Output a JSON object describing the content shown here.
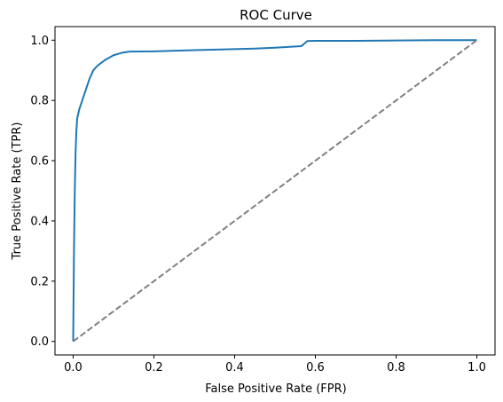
{
  "chart_data": {
    "type": "line",
    "title": "ROC Curve",
    "xlabel": "False Positive Rate (FPR)",
    "ylabel": "True Positive Rate (TPR)",
    "xlim": [
      -0.045,
      1.045
    ],
    "ylim": [
      -0.045,
      1.045
    ],
    "xticks": [
      0.0,
      0.2,
      0.4,
      0.6,
      0.8,
      1.0
    ],
    "yticks": [
      0.0,
      0.2,
      0.4,
      0.6,
      0.8,
      1.0
    ],
    "xtick_labels": [
      "0.0",
      "0.2",
      "0.4",
      "0.6",
      "0.8",
      "1.0"
    ],
    "ytick_labels": [
      "0.0",
      "0.2",
      "0.4",
      "0.6",
      "0.8",
      "1.0"
    ],
    "grid": false,
    "series": [
      {
        "color": "#1f77b4",
        "style": "solid",
        "x": [
          0.0,
          0.002,
          0.004,
          0.006,
          0.008,
          0.01,
          0.015,
          0.02,
          0.03,
          0.04,
          0.05,
          0.06,
          0.07,
          0.08,
          0.1,
          0.12,
          0.14,
          0.2,
          0.3,
          0.45,
          0.5,
          0.565,
          0.58,
          0.6,
          0.7,
          0.8,
          0.9,
          1.0
        ],
        "y": [
          0.0,
          0.3,
          0.5,
          0.63,
          0.7,
          0.74,
          0.77,
          0.79,
          0.83,
          0.87,
          0.9,
          0.915,
          0.925,
          0.935,
          0.95,
          0.958,
          0.962,
          0.963,
          0.967,
          0.972,
          0.975,
          0.98,
          0.997,
          0.998,
          0.998,
          0.999,
          1.0,
          1.0
        ]
      },
      {
        "color": "#808080",
        "style": "dashed",
        "x": [
          0.0,
          1.0
        ],
        "y": [
          0.0,
          1.0
        ]
      }
    ]
  }
}
